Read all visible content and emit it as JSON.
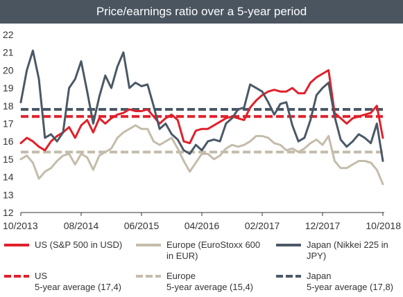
{
  "chart_data": {
    "type": "line",
    "title": "Price/earnings ratio over a 5-year period",
    "xlabel": "",
    "ylabel": "",
    "ylim": [
      12,
      22
    ],
    "yticks": [
      "12",
      "13",
      "14",
      "15",
      "16",
      "17",
      "18",
      "19",
      "20",
      "21",
      "22"
    ],
    "xticks": [
      "10/2013",
      "08/2014",
      "06/2015",
      "04/2016",
      "02/2017",
      "12/2017",
      "10/2018"
    ],
    "x_months": [
      "2013-10",
      "2013-11",
      "2013-12",
      "2014-01",
      "2014-02",
      "2014-03",
      "2014-04",
      "2014-05",
      "2014-06",
      "2014-07",
      "2014-08",
      "2014-09",
      "2014-10",
      "2014-11",
      "2014-12",
      "2015-01",
      "2015-02",
      "2015-03",
      "2015-04",
      "2015-05",
      "2015-06",
      "2015-07",
      "2015-08",
      "2015-09",
      "2015-10",
      "2015-11",
      "2015-12",
      "2016-01",
      "2016-02",
      "2016-03",
      "2016-04",
      "2016-05",
      "2016-06",
      "2016-07",
      "2016-08",
      "2016-09",
      "2016-10",
      "2016-11",
      "2016-12",
      "2017-01",
      "2017-02",
      "2017-03",
      "2017-04",
      "2017-05",
      "2017-06",
      "2017-07",
      "2017-08",
      "2017-09",
      "2017-10",
      "2017-11",
      "2017-12",
      "2018-01",
      "2018-02",
      "2018-03",
      "2018-04",
      "2018-05",
      "2018-06",
      "2018-07",
      "2018-08",
      "2018-09",
      "2018-10"
    ],
    "series": [
      {
        "name": "US (S&P 500 in USD)",
        "color": "#e0202a",
        "style": "solid",
        "values": [
          15.9,
          16.2,
          16.0,
          15.7,
          15.5,
          16.0,
          16.3,
          16.5,
          16.8,
          16.2,
          16.9,
          17.2,
          16.5,
          17.3,
          17.0,
          17.3,
          17.5,
          17.6,
          17.8,
          17.7,
          17.7,
          17.8,
          17.4,
          17.0,
          17.3,
          17.5,
          17.2,
          16.0,
          15.9,
          16.6,
          16.7,
          16.7,
          16.9,
          17.1,
          17.3,
          17.4,
          17.3,
          17.2,
          17.9,
          18.3,
          18.6,
          18.8,
          18.9,
          18.8,
          18.8,
          19.0,
          18.7,
          18.7,
          19.3,
          19.6,
          19.8,
          20.0,
          17.6,
          17.3,
          17.0,
          17.3,
          17.4,
          17.5,
          17.6,
          18.0,
          16.2
        ]
      },
      {
        "name": "Europe (EuroStoxx 600 in EUR)",
        "color": "#c4bcaa",
        "style": "solid",
        "values": [
          15.0,
          15.2,
          14.8,
          13.9,
          14.3,
          14.5,
          14.9,
          15.2,
          15.3,
          14.7,
          15.3,
          15.1,
          14.4,
          15.2,
          15.4,
          15.6,
          16.2,
          16.5,
          16.7,
          16.9,
          16.7,
          16.7,
          16.0,
          15.8,
          16.0,
          16.2,
          15.6,
          14.9,
          14.3,
          14.8,
          15.3,
          15.3,
          15.0,
          15.2,
          15.6,
          15.8,
          15.7,
          15.8,
          16.0,
          16.3,
          16.3,
          16.2,
          15.9,
          15.8,
          15.5,
          15.6,
          15.4,
          15.6,
          15.9,
          16.1,
          15.8,
          16.3,
          14.9,
          14.5,
          14.5,
          14.7,
          14.9,
          14.9,
          14.8,
          14.4,
          13.6
        ]
      },
      {
        "name": "Japan (Nikkei 225 in JPY)",
        "color": "#4a5866",
        "style": "solid",
        "values": [
          18.2,
          20.0,
          21.1,
          19.5,
          16.2,
          16.4,
          16.0,
          16.5,
          19.0,
          19.5,
          20.5,
          18.8,
          17.0,
          18.5,
          19.7,
          19.0,
          20.2,
          21.0,
          19.0,
          19.3,
          19.1,
          19.2,
          18.0,
          16.7,
          17.0,
          16.4,
          16.1,
          15.5,
          15.3,
          15.8,
          15.5,
          16.0,
          16.1,
          16.0,
          17.0,
          17.3,
          17.8,
          17.9,
          19.2,
          19.0,
          18.8,
          18.2,
          17.5,
          18.1,
          18.2,
          16.9,
          16.0,
          16.2,
          17.2,
          18.6,
          19.0,
          19.3,
          17.4,
          16.1,
          15.7,
          16.0,
          16.4,
          16.2,
          15.9,
          17.0,
          14.9
        ]
      },
      {
        "name": "US 5-year average (17,4)",
        "color": "#e0202a",
        "style": "dashed",
        "average": 17.4
      },
      {
        "name": "Europe 5-year average (15,4)",
        "color": "#c4bcaa",
        "style": "dashed",
        "average": 15.4
      },
      {
        "name": "Japan 5-year average (17,8)",
        "color": "#4a5866",
        "style": "dashed",
        "average": 17.8
      }
    ],
    "grid": false,
    "legend_placement": "bottom"
  },
  "legend": {
    "us_line": "US (S&P 500 in USD)",
    "europe_line_1": "Europe (EuroStoxx 600",
    "europe_line_2": "in EUR)",
    "japan_line_1": "Japan (Nikkei 225 in",
    "japan_line_2": "JPY)",
    "us_avg_1": "US",
    "us_avg_2": "5-year average (17,4)",
    "europe_avg_1": "Europe",
    "europe_avg_2": "5-year average (15,4)",
    "japan_avg_1": "Japan",
    "japan_avg_2": "5-year average (17,8)"
  }
}
